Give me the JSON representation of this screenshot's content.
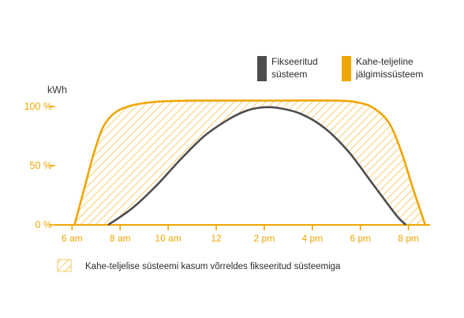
{
  "chart_data": {
    "type": "area",
    "ylabel": "kWh",
    "ylim": [
      0,
      100
    ],
    "x_tick_labels": [
      "6 am",
      "8 am",
      "10 am",
      "12",
      "2 pm",
      "4 pm",
      "6 pm",
      "8 pm"
    ],
    "x_tick_hours": [
      6,
      8,
      10,
      12,
      14,
      16,
      18,
      20
    ],
    "xlim": [
      5.3,
      20.9
    ],
    "y_ticks": [
      {
        "value": 0,
        "label": "0 %"
      },
      {
        "value": 50,
        "label": "50 %"
      },
      {
        "value": 100,
        "label": "100 %"
      }
    ],
    "series": [
      {
        "name": "Fikseeritud süsteem",
        "color": "#4d4d4f",
        "points": [
          [
            7.5,
            0
          ],
          [
            8.5,
            14
          ],
          [
            9.5,
            33
          ],
          [
            10.5,
            55
          ],
          [
            11.5,
            75
          ],
          [
            12.5,
            89
          ],
          [
            13.2,
            96
          ],
          [
            13.8,
            99
          ],
          [
            14.5,
            99
          ],
          [
            15.5,
            94
          ],
          [
            16.5,
            82
          ],
          [
            17.5,
            62
          ],
          [
            18.5,
            35
          ],
          [
            19.5,
            8
          ],
          [
            19.9,
            0
          ]
        ]
      },
      {
        "name": "Kahe-teljeline jälgimissüsteem",
        "color": "#f0a500",
        "points": [
          [
            6.1,
            0
          ],
          [
            6.5,
            30
          ],
          [
            6.9,
            60
          ],
          [
            7.3,
            83
          ],
          [
            7.8,
            95
          ],
          [
            8.5,
            101
          ],
          [
            9.5,
            104
          ],
          [
            11,
            105
          ],
          [
            14,
            105
          ],
          [
            17,
            105
          ],
          [
            18,
            103
          ],
          [
            18.6,
            98
          ],
          [
            19.2,
            86
          ],
          [
            19.7,
            62
          ],
          [
            20.2,
            30
          ],
          [
            20.7,
            0
          ]
        ]
      }
    ],
    "fill_label": "Kahe-teljelise süsteemi kasum võrreldes fikseeritud süsteemiga"
  },
  "legend": [
    {
      "label_lines": [
        "Fikseeritud",
        "süsteem"
      ],
      "color": "#4d4d4f"
    },
    {
      "label_lines": [
        "Kahe-teljeline",
        "jälgimissüsteem"
      ],
      "color": "#f0a500"
    }
  ],
  "colors": {
    "accent": "#f0a500",
    "dark": "#4d4d4f",
    "axis": "#f0a500"
  }
}
